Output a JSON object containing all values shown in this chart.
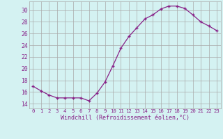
{
  "x": [
    0,
    1,
    2,
    3,
    4,
    5,
    6,
    7,
    8,
    9,
    10,
    11,
    12,
    13,
    14,
    15,
    16,
    17,
    18,
    19,
    20,
    21,
    22,
    23
  ],
  "y": [
    17.0,
    16.2,
    15.5,
    15.0,
    15.0,
    15.0,
    15.0,
    14.5,
    15.8,
    17.7,
    20.5,
    23.5,
    25.5,
    27.0,
    28.5,
    29.2,
    30.2,
    30.7,
    30.7,
    30.3,
    29.2,
    28.0,
    27.3,
    26.5
  ],
  "line_color": "#882288",
  "marker": "+",
  "marker_size": 3.5,
  "marker_lw": 1.0,
  "bg_color": "#d4f2f2",
  "grid_color": "#aaaaaa",
  "xlabel": "Windchill (Refroidissement éolien,°C)",
  "ylabel_ticks": [
    14,
    16,
    18,
    20,
    22,
    24,
    26,
    28,
    30
  ],
  "ylim": [
    13.2,
    31.5
  ],
  "xlim": [
    -0.5,
    23.5
  ],
  "axis_label_color": "#882288",
  "tick_color": "#882288",
  "xtick_fontsize": 5.2,
  "ytick_fontsize": 5.8,
  "xlabel_fontsize": 6.0
}
